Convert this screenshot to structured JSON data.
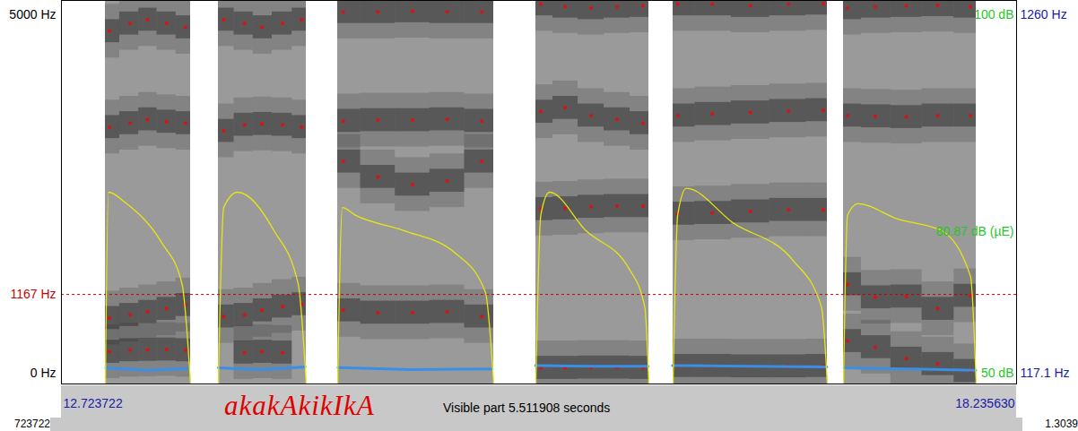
{
  "chart_data": [
    {
      "type": "spectrogram",
      "title": "akakAkikIkA",
      "subtitle": "Visible part 5.511908 seconds",
      "xlim": [
        12.723722,
        18.23563
      ],
      "xticks": [
        {
          "value": 12.723722,
          "label": "12.723722"
        },
        {
          "value": 18.23563,
          "label": "18.235630"
        }
      ],
      "ylim": [
        0,
        5000
      ],
      "yticks": [
        {
          "value": 0,
          "label": "0 Hz"
        },
        {
          "value": 5000,
          "label": "5000 Hz"
        }
      ],
      "intervals": [
        [
          12.9773,
          13.469
        ],
        [
          13.6294,
          14.1366
        ],
        [
          14.3178,
          15.2183
        ],
        [
          15.4615,
          16.1137
        ],
        [
          16.2534,
          17.1436
        ],
        [
          17.2368,
          18.0027
        ]
      ],
      "x": [
        13.0,
        13.12,
        13.22,
        13.33,
        13.44,
        13.66,
        13.78,
        13.88,
        14.0,
        14.11,
        14.35,
        14.55,
        14.75,
        14.95,
        15.15,
        15.49,
        15.63,
        15.78,
        15.93,
        16.08,
        16.28,
        16.48,
        16.7,
        16.92,
        17.12,
        17.26,
        17.42,
        17.6,
        17.78,
        17.97
      ],
      "series": [
        {
          "color": "#e01010",
          "marker": "dot",
          "values": [
            420,
            440,
            445,
            450,
            440,
            null,
            410,
            420,
            410,
            null,
            960,
            930,
            930,
            940,
            880,
            210,
            210,
            215,
            215,
            210,
            235,
            235,
            230,
            230,
            235,
            560,
            480,
            330,
            260,
            170
          ]
        },
        {
          "color": "#e01010",
          "marker": "dot",
          "values": [
            860,
            900,
            940,
            980,
            1030,
            880,
            900,
            960,
            1010,
            1040,
            2900,
            2700,
            2600,
            2650,
            2900,
            2280,
            2290,
            2310,
            2320,
            2320,
            2220,
            2230,
            2250,
            2270,
            2270,
            1300,
            1130,
            1140,
            980,
            1150
          ]
        },
        {
          "color": "#e01010",
          "marker": "dot",
          "values": [
            3350,
            3400,
            3450,
            3420,
            3400,
            3300,
            3380,
            3390,
            3380,
            3350,
            3430,
            3440,
            3440,
            3450,
            3430,
            3550,
            3600,
            3500,
            3450,
            3400,
            3500,
            3520,
            3540,
            3560,
            3570,
            3500,
            3490,
            3480,
            3500,
            3500
          ]
        },
        {
          "color": "#e01010",
          "marker": "dot",
          "values": [
            4600,
            4700,
            4750,
            4700,
            4650,
            4750,
            4700,
            4650,
            4700,
            4750,
            4850,
            4850,
            4860,
            4850,
            4850,
            4950,
            4920,
            4900,
            4920,
            4930,
            4950,
            4950,
            4930,
            4950,
            4960,
            4900,
            4920,
            4930,
            4940,
            4920
          ]
        }
      ],
      "reference_lines": [
        {
          "value": 1167,
          "label": "1167 Hz",
          "color": "#cc0000",
          "line_style": "dashed"
        }
      ]
    },
    {
      "type": "line",
      "xlim": [
        12.723722,
        18.23563
      ],
      "ylim": [
        117.1,
        1260
      ],
      "yticks": [
        {
          "value": 117.1,
          "label": "117.1 Hz"
        },
        {
          "value": 1260,
          "label": "1260 Hz"
        }
      ],
      "x": [
        12.98,
        13.22,
        13.46,
        13.55,
        13.63,
        13.88,
        14.13,
        14.22,
        14.32,
        14.75,
        15.21,
        15.34,
        15.46,
        15.78,
        16.11,
        16.18,
        16.25,
        16.7,
        17.14,
        17.19,
        17.24,
        17.6,
        18.0
      ],
      "series": [
        {
          "color": "#3a8ee6",
          "values": [
            165,
            158,
            163,
            null,
            165,
            160,
            168,
            null,
            166,
            160,
            162,
            null,
            172,
            170,
            170,
            null,
            172,
            170,
            168,
            null,
            165,
            162,
            158
          ]
        }
      ]
    },
    {
      "type": "line",
      "xlim": [
        12.723722,
        18.23563
      ],
      "ylim": [
        50,
        100
      ],
      "yticks": [
        {
          "value": 50,
          "label": "50 dB"
        },
        {
          "value": 100,
          "label": "100 dB"
        }
      ],
      "x": [
        12.9773,
        12.995,
        13.1,
        13.3,
        13.42,
        13.469,
        13.55,
        13.6294,
        13.66,
        13.74,
        13.95,
        14.09,
        14.1366,
        14.22,
        14.3178,
        14.345,
        14.42,
        14.7,
        15.0,
        15.17,
        15.2183,
        15.34,
        15.4615,
        15.49,
        15.54,
        15.75,
        16.0,
        16.09,
        16.1137,
        16.18,
        16.2534,
        16.28,
        16.33,
        16.6,
        16.95,
        17.11,
        17.1436,
        17.19,
        17.2368,
        17.26,
        17.32,
        17.55,
        17.8,
        17.97,
        18.0027
      ],
      "series": [
        {
          "color": "#e6e610",
          "values": [
            50,
            75,
            73.5,
            68.5,
            63,
            50,
            null,
            50,
            73,
            75,
            70,
            63,
            50,
            null,
            50,
            73,
            72,
            70,
            67,
            62,
            50,
            null,
            50,
            72,
            75,
            70,
            65,
            60,
            50,
            null,
            50,
            72,
            75.5,
            71,
            66,
            60,
            50,
            null,
            50,
            72,
            73.5,
            71.5,
            70,
            64,
            50
          ]
        }
      ],
      "annotations": [
        {
          "label": "80.87 dB (µE)"
        }
      ]
    }
  ],
  "footer": {
    "left": "723722",
    "right": "1.3039"
  }
}
